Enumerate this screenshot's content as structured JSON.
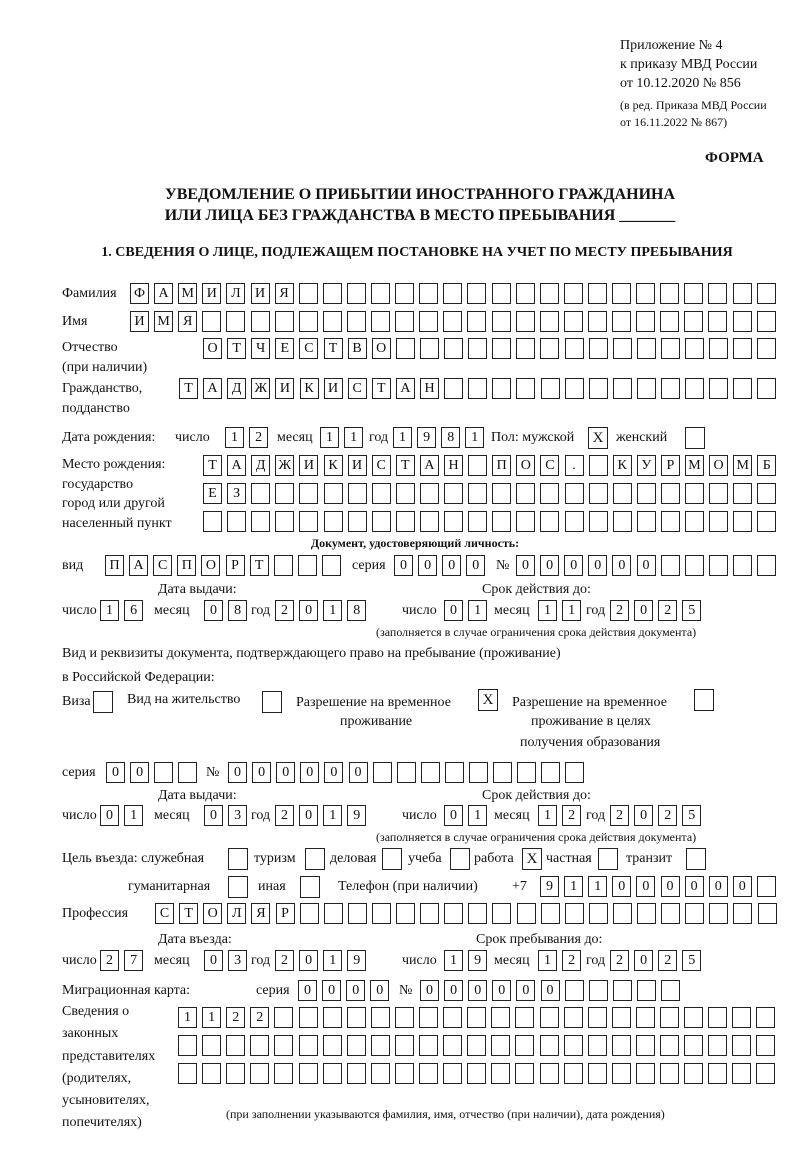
{
  "header": {
    "appendix_line1": "Приложение № 4",
    "appendix_line2": "к приказу МВД России",
    "appendix_line3": "от 10.12.2020 № 856",
    "revision_line1": "(в ред. Приказа МВД России",
    "revision_line2": "от 16.11.2022 № 867)",
    "form_label": "ФОРМА",
    "title_line1": "УВЕДОМЛЕНИЕ О ПРИБЫТИИ ИНОСТРАННОГО ГРАЖДАНИНА",
    "title_line2": "ИЛИ ЛИЦА БЕЗ ГРАЖДАНСТВА В МЕСТО ПРЕБЫВАНИЯ _______",
    "section1": "1. СВЕДЕНИЯ О ЛИЦЕ, ПОДЛЕЖАЩЕМ ПОСТАНОВКЕ НА УЧЕТ ПО МЕСТУ ПРЕБЫВАНИЯ"
  },
  "person": {
    "surname_label": "Фамилия",
    "surname": "ФАМИЛИЯ",
    "name_label": "Имя",
    "name": "ИМЯ",
    "patronymic_label1": "Отчество",
    "patronymic_label2": "(при наличии)",
    "patronymic": "ОТЧЕСТВО",
    "citizenship_label1": "Гражданство,",
    "citizenship_label2": "подданство",
    "citizenship": "ТАДЖИКИСТАН",
    "dob_label": "Дата рождения:",
    "day_label": "число",
    "month_label": "месяц",
    "year_label": "год",
    "dob_day": "12",
    "dob_month": "11",
    "dob_year": "1981",
    "sex_label": "Пол: мужской",
    "female_label": "женский",
    "male_mark": "X",
    "female_mark": "",
    "birthplace_label1": "Место рождения:",
    "birthplace_label2": "государство",
    "birthplace_label3": "город или другой",
    "birthplace_label4": "населенный пункт",
    "birthplace_line1": "ТАДЖИКИСТАН ПОС. КУРМОМБ",
    "birthplace_line2": "ЕЗ",
    "birthplace_line3": ""
  },
  "identity_doc": {
    "heading": "Документ, удостоверяющий личность:",
    "type_label": "вид",
    "type": "ПАСПОРТ",
    "series_label": "серия",
    "series": "0000",
    "number_label": "№",
    "number": "000000",
    "issue_label": "Дата выдачи:",
    "valid_label": "Срок действия до:",
    "day_label": "число",
    "month_label": "месяц",
    "year_label": "год",
    "issue_day": "16",
    "issue_month": "08",
    "issue_year": "2018",
    "valid_day": "01",
    "valid_month": "11",
    "valid_year": "2025",
    "note": "(заполняется в случае ограничения срока действия документа)"
  },
  "residence_doc": {
    "heading1": "Вид и реквизиты документа, подтверждающего право на пребывание (проживание)",
    "heading2": "в Российской Федерации:",
    "visa_label": "Виза",
    "visa_mark": "",
    "permit_label": "Вид на жительство",
    "permit_mark": "",
    "temp_label1": "Разрешение на временное",
    "temp_label2": "проживание",
    "temp_mark": "X",
    "edu_label1": "Разрешение на временное",
    "edu_label2": "проживание в целях",
    "edu_label3": "получения образования",
    "edu_mark": "",
    "series_label": "серия",
    "series": "00",
    "number_label": "№",
    "number": "000000",
    "issue_label": "Дата выдачи:",
    "valid_label": "Срок действия до:",
    "day_label": "число",
    "month_label": "месяц",
    "year_label": "год",
    "issue_day": "01",
    "issue_month": "03",
    "issue_year": "2019",
    "valid_day": "01",
    "valid_month": "12",
    "valid_year": "2025",
    "note": "(заполняется в случае ограничения срока действия документа)"
  },
  "purpose": {
    "label": "Цель въезда: служебная",
    "service_mark": "",
    "tourism_label": "туризм",
    "tourism_mark": "",
    "business_label": "деловая",
    "business_mark": "",
    "study_label": "учеба",
    "study_mark": "",
    "work_label": "работа",
    "work_mark": "X",
    "private_label": "частная",
    "private_mark": "",
    "transit_label": "транзит",
    "transit_mark": "",
    "humanitarian_label": "гуманитарная",
    "humanitarian_mark": "",
    "other_label": "иная",
    "other_mark": ""
  },
  "phone": {
    "label": "Телефон (при наличии)",
    "prefix": "+7",
    "value": "911000000"
  },
  "profession": {
    "label": "Профессия",
    "value": "СТОЛЯР"
  },
  "stay": {
    "entry_label": "Дата въезда:",
    "until_label": "Срок пребывания до:",
    "day_label": "число",
    "month_label": "месяц",
    "year_label": "год",
    "entry_day": "27",
    "entry_month": "03",
    "entry_year": "2019",
    "until_day": "19",
    "until_month": "12",
    "until_year": "2025"
  },
  "migration_card": {
    "label": "Миграционная карта:",
    "series_label": "серия",
    "series": "0000",
    "number_label": "№",
    "number": "000000"
  },
  "representatives": {
    "label1": "Сведения о",
    "label2": "законных",
    "label3": "представителях",
    "label4": "(родителях,",
    "label5": "усыновителях,",
    "label6": "попечителях)",
    "line1": "1122",
    "line2": "",
    "line3": "",
    "note": "(при заполнении указываются фамилия, имя, отчество (при наличии), дата рождения)"
  }
}
